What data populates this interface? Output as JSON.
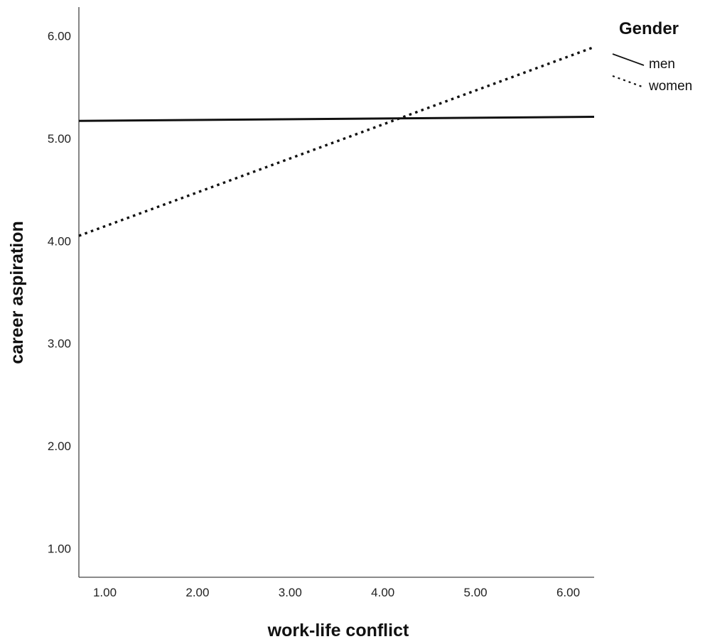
{
  "chart_data": {
    "type": "line",
    "title": "",
    "xlabel": "work-life conflict",
    "ylabel": "career aspiration",
    "xlim": [
      0.72,
      6.28
    ],
    "ylim": [
      0.72,
      6.28
    ],
    "xticks": [
      "1.00",
      "2.00",
      "3.00",
      "4.00",
      "5.00",
      "6.00"
    ],
    "yticks": [
      "1.00",
      "2.00",
      "3.00",
      "4.00",
      "5.00",
      "6.00"
    ],
    "grid": false,
    "legend": {
      "title": "Gender",
      "position": "top-right"
    },
    "series": [
      {
        "name": "men",
        "style": "solid",
        "color": "#111111",
        "x": [
          0.72,
          6.28
        ],
        "y": [
          5.17,
          5.21
        ]
      },
      {
        "name": "women",
        "style": "dotted",
        "color": "#111111",
        "x": [
          0.72,
          6.28
        ],
        "y": [
          4.05,
          5.89
        ]
      }
    ]
  }
}
